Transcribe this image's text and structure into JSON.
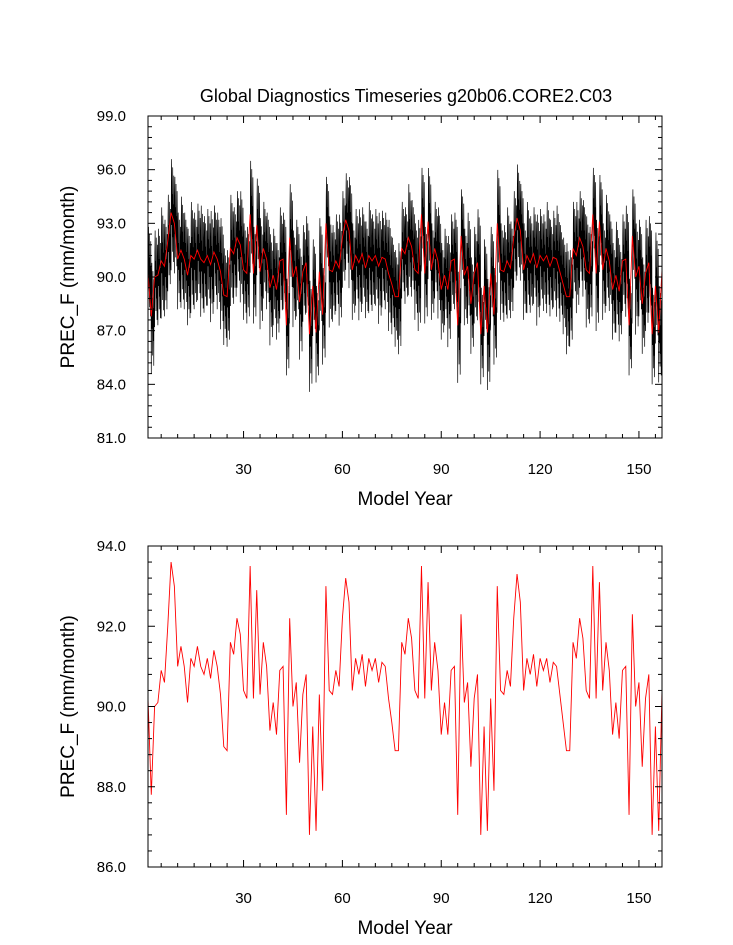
{
  "title": "Global Diagnostics Timeseries g20b06.CORE2.C03",
  "chart_data": [
    {
      "type": "line",
      "xlabel": "Model Year",
      "ylabel": "PREC_F (mm/month)",
      "xlim": [
        1,
        157
      ],
      "ylim": [
        81.0,
        99.0
      ],
      "xticks": [
        30,
        60,
        90,
        120,
        150
      ],
      "yticks": [
        81.0,
        84.0,
        87.0,
        90.0,
        93.0,
        96.0,
        99.0
      ],
      "ytick_labels": [
        "81.0",
        "84.0",
        "87.0",
        "90.0",
        "93.0",
        "96.0",
        "99.0"
      ],
      "grid": false,
      "series": [
        {
          "color": "#000000",
          "sampling": "monthly",
          "monthly_spread": [
            -2.8,
            1.4,
            2.6,
            -0.6,
            0.9,
            -1.9,
            2.2,
            -1.2,
            0.4,
            -2.4,
            1.8,
            0.1
          ],
          "values": [
            90.2,
            87.8,
            90.0,
            90.1,
            90.9,
            90.6,
            92.0,
            93.6,
            93.0,
            91.0,
            91.5,
            91.0,
            90.1,
            91.2,
            91.0,
            91.5,
            91.0,
            90.8,
            91.2,
            90.7,
            91.4,
            91.0,
            90.3,
            89.0,
            88.9,
            91.6,
            91.3,
            92.2,
            91.8,
            90.4,
            90.2,
            93.5,
            90.2,
            92.9,
            90.3,
            91.6,
            91.0,
            89.4,
            90.1,
            89.3,
            90.9,
            91.0,
            87.3,
            92.2,
            90.0,
            90.6,
            88.6,
            90.3,
            90.8,
            86.8,
            89.5,
            86.9,
            90.3,
            87.9,
            93.0,
            90.4,
            90.3,
            90.9,
            90.5,
            92.2,
            93.2,
            92.6,
            90.4,
            91.2,
            90.8,
            91.3,
            90.5,
            91.2,
            90.9,
            91.2,
            90.6,
            91.1,
            91.0,
            90.2,
            89.6,
            88.9,
            88.9,
            91.6,
            91.3,
            92.2,
            91.7,
            90.4,
            90.2,
            93.5,
            90.2,
            93.1,
            90.4,
            91.6,
            90.9,
            89.3,
            90.1,
            89.3,
            90.9,
            91.0,
            87.3,
            92.3,
            90.1,
            90.6,
            88.5,
            90.2,
            90.8,
            86.8,
            89.5,
            86.9,
            90.2,
            87.9,
            93.0,
            90.4,
            90.3,
            90.9,
            90.5,
            92.2,
            93.3,
            92.6,
            90.4,
            91.2,
            90.8,
            91.3,
            90.5,
            91.2,
            90.9,
            91.2,
            90.6,
            91.1,
            91.0,
            90.3,
            89.6,
            88.9,
            88.9,
            91.6,
            91.2,
            92.2,
            91.7,
            90.4,
            90.2,
            93.5,
            90.2,
            93.1,
            90.4,
            91.6,
            90.9,
            89.3,
            90.1,
            89.2,
            90.9,
            91.0,
            87.3,
            92.3,
            90.0,
            90.6,
            88.5,
            90.2,
            90.8,
            86.8,
            89.5,
            86.9,
            90.4
          ]
        },
        {
          "color": "#ff0000",
          "sampling": "annual",
          "values": [
            90.2,
            87.8,
            90.0,
            90.1,
            90.9,
            90.6,
            92.0,
            93.6,
            93.0,
            91.0,
            91.5,
            91.0,
            90.1,
            91.2,
            91.0,
            91.5,
            91.0,
            90.8,
            91.2,
            90.7,
            91.4,
            91.0,
            90.3,
            89.0,
            88.9,
            91.6,
            91.3,
            92.2,
            91.8,
            90.4,
            90.2,
            93.5,
            90.2,
            92.9,
            90.3,
            91.6,
            91.0,
            89.4,
            90.1,
            89.3,
            90.9,
            91.0,
            87.3,
            92.2,
            90.0,
            90.6,
            88.6,
            90.3,
            90.8,
            86.8,
            89.5,
            86.9,
            90.3,
            87.9,
            93.0,
            90.4,
            90.3,
            90.9,
            90.5,
            92.2,
            93.2,
            92.6,
            90.4,
            91.2,
            90.8,
            91.3,
            90.5,
            91.2,
            90.9,
            91.2,
            90.6,
            91.1,
            91.0,
            90.2,
            89.6,
            88.9,
            88.9,
            91.6,
            91.3,
            92.2,
            91.7,
            90.4,
            90.2,
            93.5,
            90.2,
            93.1,
            90.4,
            91.6,
            90.9,
            89.3,
            90.1,
            89.3,
            90.9,
            91.0,
            87.3,
            92.3,
            90.1,
            90.6,
            88.5,
            90.2,
            90.8,
            86.8,
            89.5,
            86.9,
            90.2,
            87.9,
            93.0,
            90.4,
            90.3,
            90.9,
            90.5,
            92.2,
            93.3,
            92.6,
            90.4,
            91.2,
            90.8,
            91.3,
            90.5,
            91.2,
            90.9,
            91.2,
            90.6,
            91.1,
            91.0,
            90.3,
            89.6,
            88.9,
            88.9,
            91.6,
            91.2,
            92.2,
            91.7,
            90.4,
            90.2,
            93.5,
            90.2,
            93.1,
            90.4,
            91.6,
            90.9,
            89.3,
            90.1,
            89.2,
            90.9,
            91.0,
            87.3,
            92.3,
            90.0,
            90.6,
            88.5,
            90.2,
            90.8,
            86.8,
            89.5,
            86.9,
            90.4
          ]
        }
      ]
    },
    {
      "type": "line",
      "xlabel": "Model Year",
      "ylabel": "PREC_F (mm/month)",
      "xlim": [
        1,
        157
      ],
      "ylim": [
        86.0,
        94.0
      ],
      "xticks": [
        30,
        60,
        90,
        120,
        150
      ],
      "yticks": [
        86.0,
        88.0,
        90.0,
        92.0,
        94.0
      ],
      "ytick_labels": [
        "86.0",
        "88.0",
        "90.0",
        "92.0",
        "94.0"
      ],
      "grid": false,
      "series": [
        {
          "color": "#ff0000",
          "sampling": "annual",
          "values": [
            90.2,
            87.8,
            90.0,
            90.1,
            90.9,
            90.6,
            92.0,
            93.6,
            93.0,
            91.0,
            91.5,
            91.0,
            90.1,
            91.2,
            91.0,
            91.5,
            91.0,
            90.8,
            91.2,
            90.7,
            91.4,
            91.0,
            90.3,
            89.0,
            88.9,
            91.6,
            91.3,
            92.2,
            91.8,
            90.4,
            90.2,
            93.5,
            90.2,
            92.9,
            90.3,
            91.6,
            91.0,
            89.4,
            90.1,
            89.3,
            90.9,
            91.0,
            87.3,
            92.2,
            90.0,
            90.6,
            88.6,
            90.3,
            90.8,
            86.8,
            89.5,
            86.9,
            90.3,
            87.9,
            93.0,
            90.4,
            90.3,
            90.9,
            90.5,
            92.2,
            93.2,
            92.6,
            90.4,
            91.2,
            90.8,
            91.3,
            90.5,
            91.2,
            90.9,
            91.2,
            90.6,
            91.1,
            91.0,
            90.2,
            89.6,
            88.9,
            88.9,
            91.6,
            91.3,
            92.2,
            91.7,
            90.4,
            90.2,
            93.5,
            90.2,
            93.1,
            90.4,
            91.6,
            90.9,
            89.3,
            90.1,
            89.3,
            90.9,
            91.0,
            87.3,
            92.3,
            90.1,
            90.6,
            88.5,
            90.2,
            90.8,
            86.8,
            89.5,
            86.9,
            90.2,
            87.9,
            93.0,
            90.4,
            90.3,
            90.9,
            90.5,
            92.2,
            93.3,
            92.6,
            90.4,
            91.2,
            90.8,
            91.3,
            90.5,
            91.2,
            90.9,
            91.2,
            90.6,
            91.1,
            91.0,
            90.3,
            89.6,
            88.9,
            88.9,
            91.6,
            91.2,
            92.2,
            91.7,
            90.4,
            90.2,
            93.5,
            90.2,
            93.1,
            90.4,
            91.6,
            90.9,
            89.3,
            90.1,
            89.2,
            90.9,
            91.0,
            87.3,
            92.3,
            90.0,
            90.6,
            88.5,
            90.2,
            90.8,
            86.8,
            89.5,
            86.9,
            90.4
          ]
        }
      ]
    }
  ]
}
